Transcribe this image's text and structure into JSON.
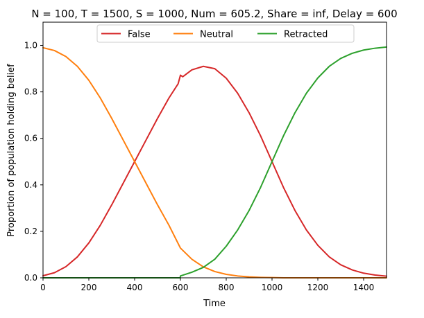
{
  "chart_data": {
    "type": "line",
    "title": "N = 100, T = 1500, S = 1000, Num = 605.2, Share = inf, Delay = 600",
    "xlabel": "Time",
    "ylabel": "Proportion of population holding belief",
    "xlim": [
      0,
      1500
    ],
    "ylim": [
      0,
      1.1
    ],
    "x_ticks": [
      0,
      200,
      400,
      600,
      800,
      1000,
      1200,
      1400
    ],
    "x_tick_labels": [
      "0",
      "200",
      "400",
      "600",
      "800",
      "1000",
      "1200",
      "1400"
    ],
    "y_ticks": [
      0.0,
      0.2,
      0.4,
      0.6,
      0.8,
      1.0
    ],
    "y_tick_labels": [
      "0.0",
      "0.2",
      "0.4",
      "0.6",
      "0.8",
      "1.0"
    ],
    "grid": false,
    "legend_placement": "upper-center",
    "series": [
      {
        "name": "False",
        "color": "#d62728",
        "x": [
          0,
          50,
          100,
          150,
          200,
          250,
          300,
          350,
          400,
          450,
          500,
          550,
          590,
          600,
          610,
          650,
          700,
          750,
          800,
          850,
          900,
          950,
          1000,
          1050,
          1100,
          1150,
          1200,
          1250,
          1300,
          1350,
          1400,
          1450,
          1500
        ],
        "y": [
          0.009,
          0.022,
          0.048,
          0.09,
          0.15,
          0.226,
          0.314,
          0.407,
          0.5,
          0.593,
          0.686,
          0.774,
          0.835,
          0.872,
          0.865,
          0.895,
          0.91,
          0.9,
          0.859,
          0.794,
          0.71,
          0.611,
          0.5,
          0.389,
          0.29,
          0.206,
          0.14,
          0.09,
          0.056,
          0.034,
          0.02,
          0.012,
          0.007
        ]
      },
      {
        "name": "Neutral",
        "color": "#ff7f0e",
        "x": [
          0,
          50,
          100,
          150,
          200,
          250,
          300,
          350,
          400,
          450,
          500,
          550,
          600,
          650,
          700,
          750,
          800,
          850,
          900,
          950,
          1000,
          1050,
          1100,
          1200,
          1300,
          1400,
          1500
        ],
        "y": [
          0.99,
          0.978,
          0.952,
          0.91,
          0.85,
          0.774,
          0.686,
          0.593,
          0.5,
          0.407,
          0.314,
          0.226,
          0.128,
          0.08,
          0.047,
          0.027,
          0.015,
          0.008,
          0.004,
          0.002,
          0.001,
          0.0,
          0.0,
          0.0,
          0.0,
          0.0,
          0.0
        ]
      },
      {
        "name": "Retracted",
        "color": "#2ca02c",
        "x": [
          0,
          100,
          200,
          300,
          400,
          500,
          599,
          600,
          650,
          700,
          750,
          800,
          850,
          900,
          950,
          1000,
          1050,
          1100,
          1150,
          1200,
          1250,
          1300,
          1350,
          1400,
          1450,
          1500
        ],
        "y": [
          0.0,
          0.0,
          0.0,
          0.0,
          0.0,
          0.0,
          0.0,
          0.008,
          0.024,
          0.045,
          0.08,
          0.136,
          0.206,
          0.29,
          0.389,
          0.5,
          0.611,
          0.71,
          0.794,
          0.86,
          0.91,
          0.944,
          0.966,
          0.98,
          0.988,
          0.993
        ]
      }
    ]
  }
}
